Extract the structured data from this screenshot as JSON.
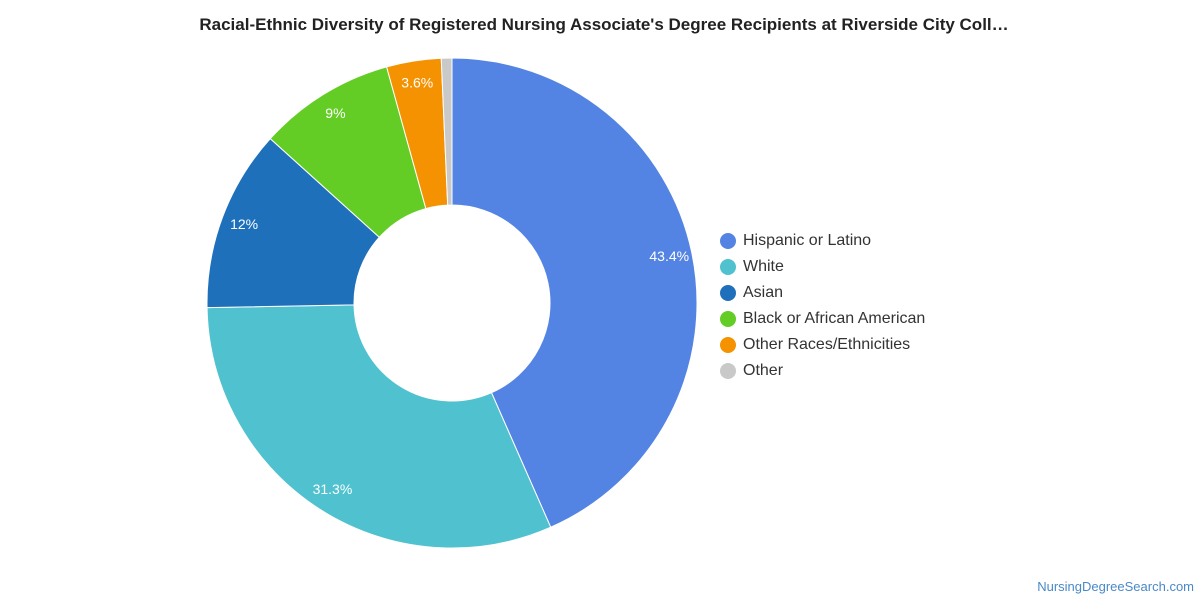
{
  "chart_data": {
    "type": "pie",
    "title": "Racial-Ethnic Diversity of Registered Nursing Associate's Degree Recipients at Riverside City Coll…",
    "legend_position": "right",
    "donut": true,
    "slices": [
      {
        "name": "Hispanic or Latino",
        "value": 43.4,
        "label": "43.4%",
        "color": "#5484e3"
      },
      {
        "name": "White",
        "value": 31.3,
        "label": "31.3%",
        "color": "#50c1ce"
      },
      {
        "name": "Asian",
        "value": 12,
        "label": "12%",
        "color": "#1f70bb"
      },
      {
        "name": "Black or African American",
        "value": 9,
        "label": "9%",
        "color": "#63cd25"
      },
      {
        "name": "Other Races/Ethnicities",
        "value": 3.6,
        "label": "3.6%",
        "color": "#f59201"
      },
      {
        "name": "Other",
        "value": 0.7,
        "label": "",
        "color": "#c9c9c9"
      }
    ]
  },
  "watermark": "NursingDegreeSearch.com"
}
